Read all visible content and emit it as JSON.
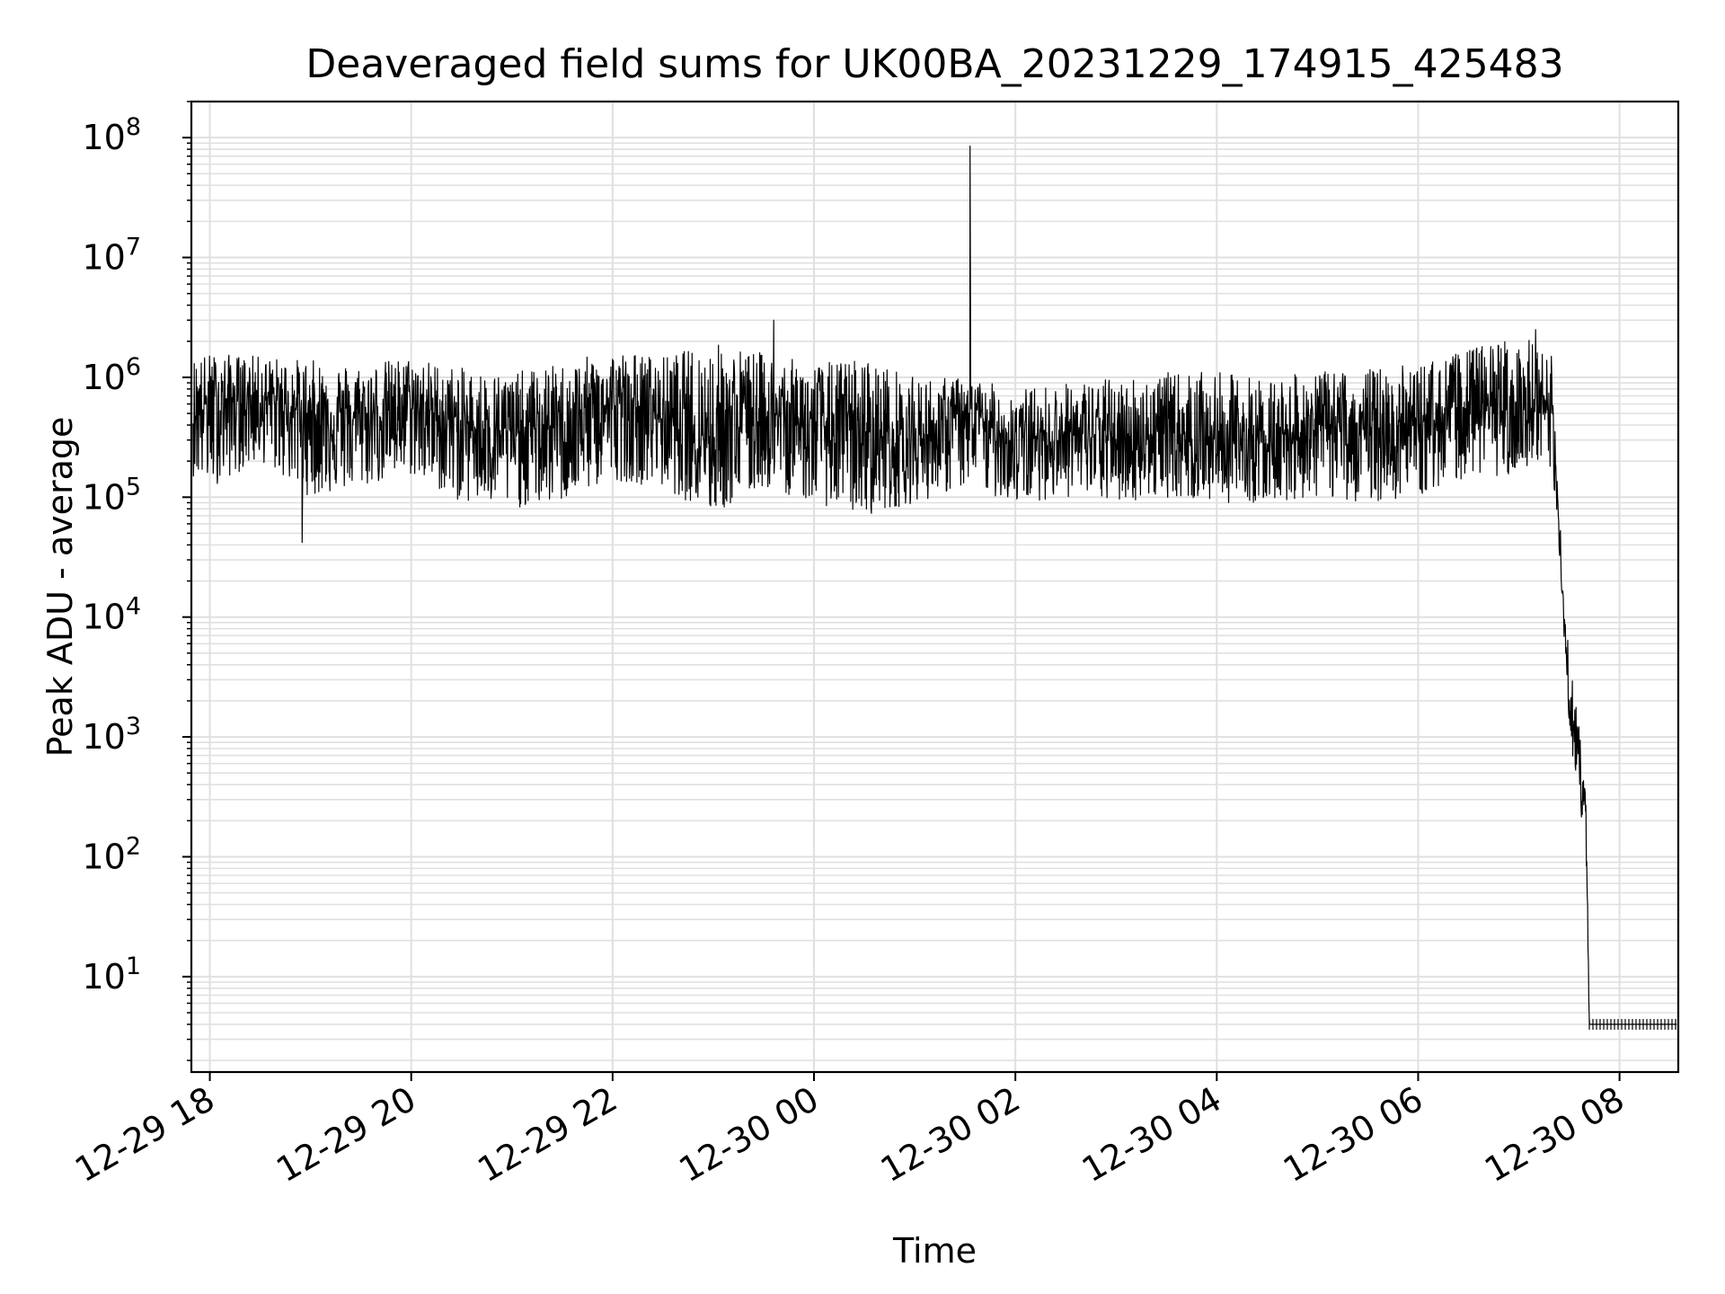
{
  "chart_data": {
    "type": "line",
    "title": "Deaveraged field sums for UK00BA_20231229_174915_425483",
    "xlabel": "Time",
    "ylabel": "Peak ADU - average",
    "x_scale": "time",
    "y_scale": "log",
    "xlim": [
      "2023-12-29 17:49",
      "2023-12-30 08:35"
    ],
    "ylim": [
      1.6,
      200000000
    ],
    "x_ticks": [
      "2023-12-29 18:00",
      "2023-12-29 20:00",
      "2023-12-29 22:00",
      "2023-12-30 00:00",
      "2023-12-30 02:00",
      "2023-12-30 04:00",
      "2023-12-30 06:00",
      "2023-12-30 08:00"
    ],
    "x_tick_labels": [
      "12-29 18",
      "12-29 20",
      "12-29 22",
      "12-30 00",
      "12-30 02",
      "12-30 04",
      "12-30 06",
      "12-30 08"
    ],
    "y_ticks": [
      10,
      100,
      1000,
      10000,
      100000,
      1000000,
      10000000,
      100000000
    ],
    "y_tick_base": "10",
    "y_tick_exponents": [
      "1",
      "2",
      "3",
      "4",
      "5",
      "6",
      "7",
      "8"
    ],
    "grid": true,
    "line_color": "#000000",
    "grid_color": "#e0e0e0",
    "series": [
      {
        "x": [
          "2023-12-29 17:50",
          "2023-12-29 18:00",
          "2023-12-29 18:30",
          "2023-12-29 19:00",
          "2023-12-29 19:30",
          "2023-12-29 20:00",
          "2023-12-29 20:30",
          "2023-12-29 21:00",
          "2023-12-29 21:30",
          "2023-12-29 22:00",
          "2023-12-29 22:30",
          "2023-12-29 23:00",
          "2023-12-29 23:30",
          "2023-12-30 00:00",
          "2023-12-30 00:30",
          "2023-12-30 01:00",
          "2023-12-30 01:30",
          "2023-12-30 02:00",
          "2023-12-30 02:30",
          "2023-12-30 03:00",
          "2023-12-30 03:30",
          "2023-12-30 04:00",
          "2023-12-30 04:30",
          "2023-12-30 05:00",
          "2023-12-30 05:30",
          "2023-12-30 06:00",
          "2023-12-30 06:30",
          "2023-12-30 07:00",
          "2023-12-30 07:20",
          "2023-12-30 07:25",
          "2023-12-30 07:30",
          "2023-12-30 07:35",
          "2023-12-30 07:40",
          "2023-12-30 07:42",
          "2023-12-30 08:00",
          "2023-12-30 08:34"
        ],
        "y": [
          600000,
          600000,
          700000,
          500000,
          450000,
          600000,
          400000,
          350000,
          400000,
          600000,
          500000,
          350000,
          500000,
          400000,
          350000,
          300000,
          500000,
          300000,
          350000,
          300000,
          350000,
          300000,
          300000,
          400000,
          350000,
          400000,
          600000,
          500000,
          500000,
          30000,
          2000,
          800,
          200,
          4,
          4,
          4
        ],
        "low": [
          150000,
          120000,
          200000,
          100000,
          120000,
          150000,
          90000,
          80000,
          90000,
          140000,
          120000,
          70000,
          120000,
          90000,
          70000,
          90000,
          120000,
          90000,
          100000,
          90000,
          100000,
          90000,
          90000,
          100000,
          90000,
          100000,
          150000,
          150000,
          150000,
          20000,
          1000,
          400,
          100,
          4,
          4,
          4
        ],
        "high": [
          1500000,
          1600000,
          1500000,
          1400000,
          1300000,
          1500000,
          1200000,
          1100000,
          1300000,
          1700000,
          1500000,
          2000000,
          1600000,
          1300000,
          1500000,
          1000000,
          1000000,
          800000,
          900000,
          1000000,
          1100000,
          1100000,
          1000000,
          1100000,
          1200000,
          1300000,
          1700000,
          2400000,
          1500000,
          50000,
          5000,
          1500,
          600,
          4,
          4,
          4
        ]
      }
    ],
    "spikes": [
      {
        "x": "2023-12-30 01:33",
        "y": 85000000
      },
      {
        "x": "2023-12-29 23:36",
        "y": 3000000
      },
      {
        "x": "2023-12-30 07:10",
        "y": 2500000
      },
      {
        "x": "2023-12-29 18:55",
        "y": 42000
      }
    ]
  }
}
